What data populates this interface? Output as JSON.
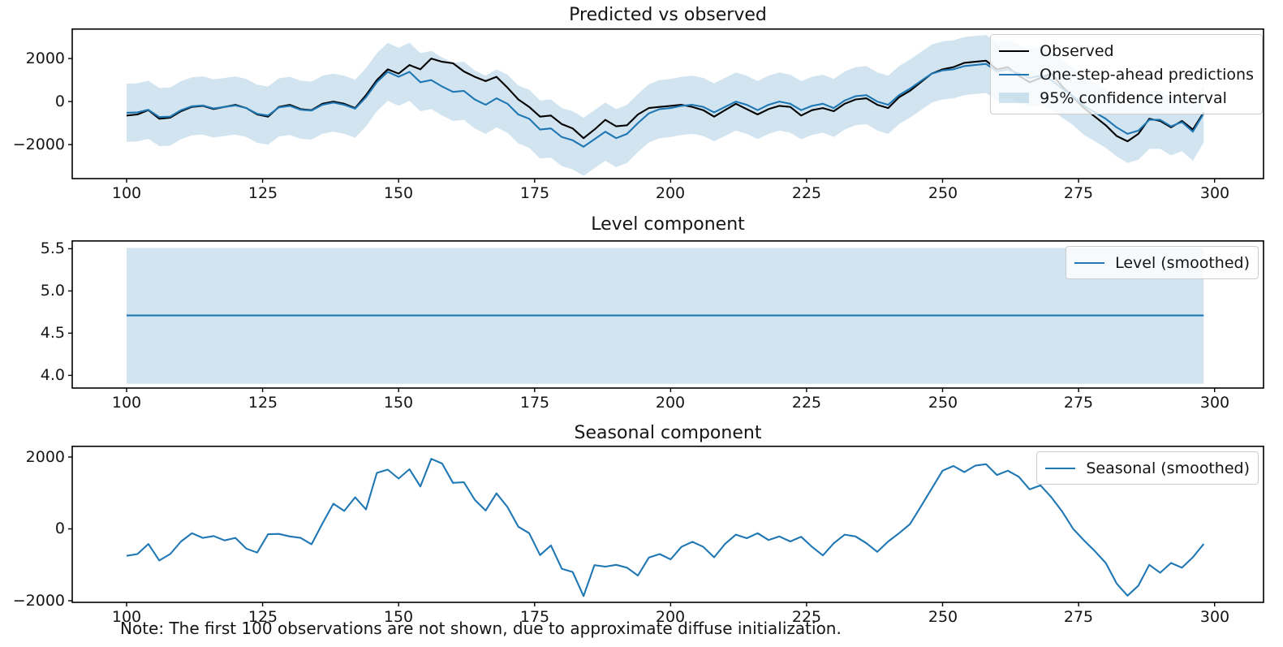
{
  "figure": {
    "note": "Note: The first 100 observations are not shown, due to approximate diffuse initialization."
  },
  "colors": {
    "observed": "#000000",
    "predicted": "#1f77b4",
    "level": "#1f77b4",
    "seasonal": "#1f77b4",
    "confidence_band": "rgba(31,119,180,0.2)",
    "axes_edge": "#000000"
  },
  "chart_data": [
    {
      "type": "line",
      "title": "Predicted vs observed",
      "legend": [
        "Observed",
        "One-step-ahead predictions",
        "95% confidence interval"
      ],
      "legend_position": "upper right",
      "grid": false,
      "xlim": [
        90,
        309
      ],
      "ylim": [
        -3580,
        3400
      ],
      "xtick_values": [
        100,
        125,
        150,
        175,
        200,
        225,
        250,
        275,
        300
      ],
      "xtick_labels": [
        "100",
        "125",
        "150",
        "175",
        "200",
        "225",
        "250",
        "275",
        "300"
      ],
      "ytick_values": [
        2000,
        0,
        -2000
      ],
      "ytick_labels": [
        "2000",
        "0",
        "−2000"
      ],
      "ci_series": 1,
      "ci_halfwidth": 1350,
      "x": [
        100,
        102,
        104,
        106,
        108,
        110,
        112,
        114,
        116,
        118,
        120,
        122,
        124,
        126,
        128,
        130,
        132,
        134,
        136,
        138,
        140,
        142,
        144,
        146,
        148,
        150,
        152,
        154,
        156,
        158,
        160,
        162,
        164,
        166,
        168,
        170,
        172,
        174,
        176,
        178,
        180,
        182,
        184,
        186,
        188,
        190,
        192,
        194,
        196,
        198,
        200,
        202,
        204,
        206,
        208,
        210,
        212,
        214,
        216,
        218,
        220,
        222,
        224,
        226,
        228,
        230,
        232,
        234,
        236,
        238,
        240,
        242,
        244,
        246,
        248,
        250,
        252,
        254,
        256,
        258,
        260,
        262,
        264,
        266,
        268,
        270,
        272,
        274,
        276,
        278,
        280,
        282,
        284,
        286,
        288,
        290,
        292,
        294,
        296,
        298
      ],
      "series": [
        {
          "name": "Observed",
          "key": "observed-line",
          "color": "#000000",
          "values": [
            -650,
            -600,
            -400,
            -800,
            -750,
            -450,
            -250,
            -200,
            -350,
            -250,
            -150,
            -300,
            -600,
            -700,
            -250,
            -150,
            -350,
            -400,
            -100,
            0,
            -100,
            -300,
            300,
            1000,
            1500,
            1300,
            1700,
            1500,
            2000,
            1850,
            1780,
            1400,
            1150,
            950,
            1150,
            650,
            100,
            -250,
            -700,
            -650,
            -1050,
            -1250,
            -1700,
            -1300,
            -850,
            -1150,
            -1100,
            -600,
            -300,
            -250,
            -200,
            -150,
            -250,
            -400,
            -700,
            -400,
            -100,
            -350,
            -600,
            -350,
            -200,
            -250,
            -650,
            -400,
            -300,
            -450,
            -100,
            100,
            150,
            -150,
            -300,
            200,
            500,
            900,
            1300,
            1500,
            1600,
            1800,
            1850,
            1900,
            1500,
            1600,
            1200,
            900,
            1100,
            1300,
            700,
            200,
            -300,
            -700,
            -1100,
            -1600,
            -1850,
            -1500,
            -800,
            -900,
            -1200,
            -900,
            -1300,
            -500
          ]
        },
        {
          "name": "One-step-ahead predictions",
          "key": "predicted-line",
          "color": "#1f77b4",
          "values": [
            -520,
            -500,
            -380,
            -720,
            -700,
            -400,
            -220,
            -180,
            -320,
            -250,
            -180,
            -300,
            -570,
            -650,
            -270,
            -200,
            -380,
            -420,
            -150,
            -50,
            -150,
            -330,
            200,
            900,
            1380,
            1150,
            1380,
            900,
            1000,
            700,
            450,
            500,
            100,
            -150,
            150,
            -100,
            -600,
            -800,
            -1300,
            -1250,
            -1650,
            -1800,
            -2100,
            -1750,
            -1400,
            -1700,
            -1500,
            -1000,
            -550,
            -350,
            -300,
            -200,
            -150,
            -250,
            -500,
            -250,
            0,
            -150,
            -400,
            -150,
            0,
            -100,
            -400,
            -200,
            -100,
            -300,
            50,
            250,
            300,
            0,
            -150,
            300,
            600,
            950,
            1300,
            1450,
            1500,
            1650,
            1700,
            1750,
            1400,
            1500,
            1300,
            1100,
            1200,
            1000,
            600,
            250,
            -200,
            -500,
            -800,
            -1200,
            -1500,
            -1350,
            -850,
            -850,
            -1150,
            -950,
            -1400,
            -550
          ]
        }
      ]
    },
    {
      "type": "line",
      "title": "Level component",
      "legend": [
        "Level (smoothed)"
      ],
      "legend_position": "upper right",
      "grid": false,
      "xlim": [
        90,
        309
      ],
      "ylim": [
        3.85,
        5.6
      ],
      "xtick_values": [
        100,
        125,
        150,
        175,
        200,
        225,
        250,
        275,
        300
      ],
      "xtick_labels": [
        "100",
        "125",
        "150",
        "175",
        "200",
        "225",
        "250",
        "275",
        "300"
      ],
      "ytick_values": [
        5.5,
        5.0,
        4.5,
        4.0
      ],
      "ytick_labels": [
        "5.5",
        "5.0",
        "4.5",
        "4.0"
      ],
      "ci_range": {
        "x0": 100,
        "x1": 298,
        "lo": 3.9,
        "hi": 5.51
      },
      "x": [
        100,
        298
      ],
      "series": [
        {
          "name": "Level (smoothed)",
          "key": "level-line",
          "color": "#1f77b4",
          "values": [
            4.71,
            4.71
          ]
        }
      ]
    },
    {
      "type": "line",
      "title": "Seasonal component",
      "legend": [
        "Seasonal (smoothed)"
      ],
      "legend_position": "upper right",
      "grid": false,
      "xlim": [
        90,
        309
      ],
      "ylim": [
        -2045,
        2316
      ],
      "xtick_values": [
        100,
        125,
        150,
        175,
        200,
        225,
        250,
        275,
        300
      ],
      "xtick_labels": [
        "100",
        "125",
        "150",
        "175",
        "200",
        "225",
        "250",
        "275",
        "300"
      ],
      "ytick_values": [
        2000,
        0,
        -2000
      ],
      "ytick_labels": [
        "2000",
        "0",
        "−2000"
      ],
      "x": [
        100,
        102,
        104,
        106,
        108,
        110,
        112,
        114,
        116,
        118,
        120,
        122,
        124,
        126,
        128,
        130,
        132,
        134,
        136,
        138,
        140,
        142,
        144,
        146,
        148,
        150,
        152,
        154,
        156,
        158,
        160,
        162,
        164,
        166,
        168,
        170,
        172,
        174,
        176,
        178,
        180,
        182,
        184,
        186,
        188,
        190,
        192,
        194,
        196,
        198,
        200,
        202,
        204,
        206,
        208,
        210,
        212,
        214,
        216,
        218,
        220,
        222,
        224,
        226,
        228,
        230,
        232,
        234,
        236,
        238,
        240,
        242,
        244,
        246,
        248,
        250,
        252,
        254,
        256,
        258,
        260,
        262,
        264,
        266,
        268,
        270,
        272,
        274,
        276,
        278,
        280,
        282,
        284,
        286,
        288,
        290,
        292,
        294,
        296,
        298
      ],
      "series": [
        {
          "name": "Seasonal (smoothed)",
          "key": "seasonal-line",
          "color": "#1f77b4",
          "values": [
            -750,
            -700,
            -420,
            -880,
            -700,
            -350,
            -120,
            -250,
            -200,
            -320,
            -250,
            -550,
            -660,
            -150,
            -140,
            -210,
            -250,
            -430,
            150,
            700,
            500,
            880,
            540,
            1560,
            1650,
            1400,
            1660,
            1180,
            1950,
            1820,
            1280,
            1300,
            810,
            510,
            990,
            610,
            60,
            -120,
            -730,
            -460,
            -1110,
            -1200,
            -1870,
            -1010,
            -1050,
            -1000,
            -1080,
            -1300,
            -800,
            -700,
            -850,
            -500,
            -360,
            -500,
            -790,
            -420,
            -160,
            -260,
            -120,
            -310,
            -210,
            -350,
            -220,
            -500,
            -740,
            -400,
            -160,
            -210,
            -400,
            -640,
            -350,
            -120,
            130,
            620,
            1120,
            1620,
            1750,
            1580,
            1760,
            1800,
            1500,
            1620,
            1450,
            1100,
            1210,
            880,
            480,
            0,
            -320,
            -620,
            -950,
            -1520,
            -1860,
            -1580,
            -1000,
            -1220,
            -950,
            -1080,
            -790,
            -420
          ]
        }
      ]
    }
  ]
}
